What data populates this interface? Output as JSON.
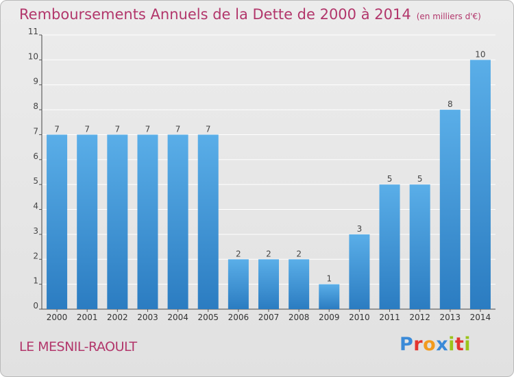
{
  "header": {
    "title": "Remboursements Annuels de la Dette de 2000 à 2014",
    "unit": "(en milliers d'€)"
  },
  "footer": {
    "town": "LE MESNIL-RAOULT",
    "logo": "Proxiti"
  },
  "colors": {
    "title": "#b2366b",
    "bar_light": "#5aaee8",
    "bar_dark": "#2b7cc1",
    "logo_letters": [
      "#3a8ad8",
      "#e3352f",
      "#f29b1e",
      "#3a8ad8",
      "#9bc41a",
      "#e3352f",
      "#9bc41a"
    ]
  },
  "chart_data": {
    "type": "bar",
    "title": "Remboursements Annuels de la Dette de 2000 à 2014",
    "xlabel": "",
    "ylabel": "",
    "categories": [
      "2000",
      "2001",
      "2002",
      "2003",
      "2004",
      "2005",
      "2006",
      "2007",
      "2008",
      "2009",
      "2010",
      "2011",
      "2012",
      "2013",
      "2014"
    ],
    "values": [
      7,
      7,
      7,
      7,
      7,
      7,
      2,
      2,
      2,
      1,
      3,
      5,
      5,
      8,
      10
    ],
    "ylim": [
      0,
      11
    ],
    "yticks": [
      0,
      1,
      2,
      3,
      4,
      5,
      6,
      7,
      8,
      9,
      10,
      11
    ],
    "grid": true,
    "legend": "none"
  }
}
